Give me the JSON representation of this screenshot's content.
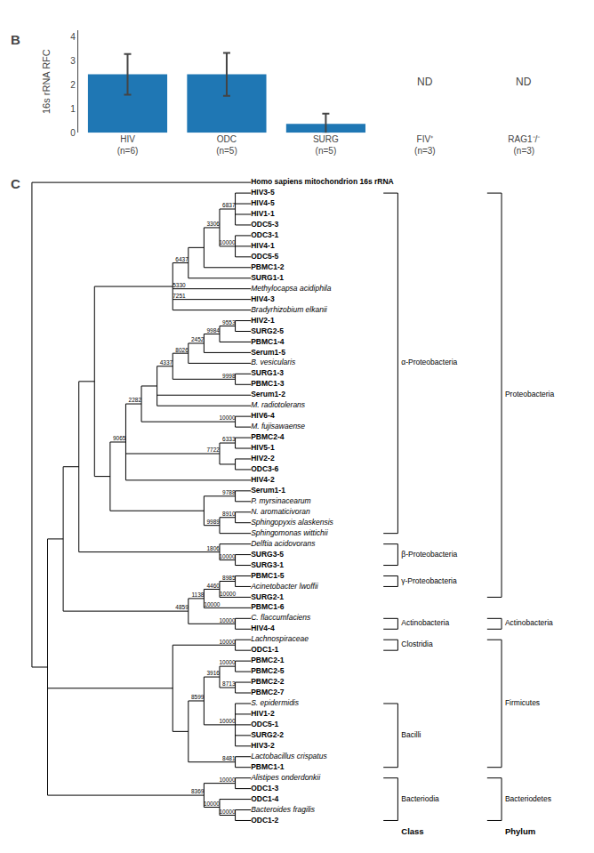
{
  "chart_data": [
    {
      "type": "bar",
      "title": "B",
      "categories": [
        "HIV\n(n=6)",
        "ODC\n(n=5)",
        "SURG\n(n=5)",
        "FIV⁺\n(n=3)",
        "RAG1⁻/⁻\n(n=3)"
      ],
      "values": [
        2.45,
        2.45,
        0.38,
        null,
        null
      ],
      "errors": [
        0.85,
        0.9,
        0.42,
        null,
        null
      ],
      "annotations": [
        {
          "x": 3,
          "text": "ND"
        },
        {
          "x": 4,
          "text": "ND"
        }
      ],
      "ylabel": "16s rRNA RFC",
      "ylim": [
        0,
        4.3
      ],
      "yticks": [
        0,
        1,
        2,
        3,
        4
      ],
      "grid": false
    },
    {
      "type": "tree",
      "title": "C",
      "color": "#000000",
      "tree": {
        "children": [
          "Homo sapiens mitochondrion 16s rRNA",
          {
            "children": [
              {
                "children": [
                  {
                    "children": [
                      {
                        "children": [
                          {
                            "children": [
                              {
                                "support": 6437,
                                "children": [
                                  {
                                    "children": [
                                      {
                                        "support": 3306,
                                        "children": [
                                          {
                                            "support": 6837,
                                            "children": [
                                              "HIV3-5",
                                              "HIV4-5",
                                              "HIV1-1",
                                              "ODC5-3"
                                            ]
                                          },
                                          {
                                            "support": 10000,
                                            "children": [
                                              "ODC3-1",
                                              "HIV4-1",
                                              "ODC5-5"
                                            ]
                                          }
                                        ]
                                      },
                                      "PBMC1-2"
                                    ]
                                  },
                                  "SURG1-1"
                                ]
                              },
                              {
                                "name": "Methylocapsa acidiphila",
                                "support": 5330
                              },
                              {
                                "name": "HIV4-3",
                                "support": 7251
                              },
                              "Bradyrhizobium elkanii"
                            ]
                          },
                          {
                            "children": [
                              {
                                "support": 9065,
                                "children": [
                                  {
                                    "support": 2282,
                                    "children": [
                                      {
                                        "children": [
                                          {
                                            "support": 4337,
                                            "children": [
                                              {
                                                "support": 8026,
                                                "children": [
                                                  {
                                                    "support": 2452,
                                                    "children": [
                                                      {
                                                        "support": 9984,
                                                        "children": [
                                                          {
                                                            "support": 9553,
                                                            "children": [
                                                              "HIV2-1",
                                                              "SURG2-5"
                                                            ]
                                                          },
                                                          "PBMC1-4"
                                                        ]
                                                      },
                                                      "Serum1-5"
                                                    ]
                                                  },
                                                  "B. vesicularis"
                                                ]
                                              },
                                              {
                                                "support": 9998,
                                                "children": [
                                                  "SURG1-3",
                                                  "PBMC1-3"
                                                ]
                                              }
                                            ]
                                          },
                                          "Serum1-2",
                                          "M. radiotolerans"
                                        ]
                                      },
                                      {
                                        "support": 10000,
                                        "children": [
                                          "HIV6-4",
                                          "M. fujisawaense"
                                        ]
                                      }
                                    ]
                                  },
                                  {
                                    "support": 7722,
                                    "children": [
                                      {
                                        "support": 6333,
                                        "children": [
                                          "PBMC2-4",
                                          "HIV5-1"
                                        ]
                                      },
                                      {
                                        "children": [
                                          "HIV2-2",
                                          "ODC3-6"
                                        ]
                                      }
                                    ]
                                  },
                                  "HIV4-2"
                                ]
                              },
                              {
                                "children": [
                                  {
                                    "support": 9788,
                                    "children": [
                                      "Serum1-1",
                                      "P. myrsinacearum"
                                    ]
                                  },
                                  {
                                    "support": 9989,
                                    "children": [
                                      {
                                        "support": 8910,
                                        "children": [
                                          "N. aromaticivoran",
                                          "Sphingopyxis alaskensis"
                                        ]
                                      },
                                      "Sphingomonas wittichii"
                                    ]
                                  }
                                ]
                              }
                            ]
                          }
                        ]
                      },
                      {
                        "support": 1806,
                        "children": [
                          "Delftia acidovorans",
                          {
                            "support": 10000,
                            "children": [
                              "SURG3-5",
                              "SURG3-1"
                            ]
                          }
                        ]
                      }
                    ]
                  },
                  {
                    "support": 4859,
                    "children": [
                      {
                        "support": 1138,
                        "children": [
                          {
                            "support": 4460,
                            "children": [
                              {
                                "support": 8985,
                                "children": [
                                  "PBMC1-5",
                                  "Acinetobacter lwoffii"
                                ]
                              },
                              {
                                "name": "SURG2-1",
                                "support": 10000
                              }
                            ]
                          },
                          {
                            "name": "PBMC1-6",
                            "support": 10000
                          }
                        ]
                      },
                      {
                        "support": 10000,
                        "children": [
                          "C. flaccumfaciens",
                          "HIV4-4"
                        ]
                      }
                    ]
                  }
                ]
              },
              {
                "children": [
                  {
                    "support": 10000,
                    "children": [
                      "Lachnospiraceae",
                      "ODC1-1"
                    ]
                  },
                  {
                    "children": [
                      {
                        "support": 8599,
                        "children": [
                          {
                            "support": 3916,
                            "children": [
                              {
                                "support": 10000,
                                "children": [
                                  "PBMC2-1",
                                  "PBMC2-5"
                                ]
                              },
                              {
                                "support": 8713,
                                "children": [
                                  "PBMC2-2",
                                  "PBMC2-7"
                                ]
                              }
                            ]
                          },
                          {
                            "support": 10000,
                            "children": [
                              "S. epidermidis",
                              "HIV1-2",
                              "ODC5-1",
                              "SURG2-2",
                              "HIV3-2"
                            ]
                          }
                        ]
                      },
                      {
                        "support": 8481,
                        "children": [
                          "Lactobacillus crispatus",
                          "PBMC1-1"
                        ]
                      }
                    ]
                  }
                ]
              },
              {
                "support": 8369,
                "children": [
                  {
                    "support": 10000,
                    "children": [
                      "Alistipes onderdonkii",
                      "ODC1-3"
                    ]
                  },
                  {
                    "support": 10000,
                    "children": [
                      "ODC1-4",
                      {
                        "support": 10000,
                        "children": [
                          "Bacteroides fragilis",
                          "ODC1-2"
                        ]
                      }
                    ]
                  }
                ]
              }
            ]
          }
        ]
      },
      "bold_taxa": [
        "Homo sapiens mitochondrion 16s rRNA",
        "HIV3-5",
        "HIV4-5",
        "HIV1-1",
        "ODC5-3",
        "ODC3-1",
        "HIV4-1",
        "ODC5-5",
        "PBMC1-2",
        "SURG1-1",
        "HIV4-3",
        "HIV2-1",
        "SURG2-5",
        "PBMC1-4",
        "Serum1-5",
        "SURG1-3",
        "PBMC1-3",
        "Serum1-2",
        "HIV6-4",
        "PBMC2-4",
        "HIV5-1",
        "HIV2-2",
        "ODC3-6",
        "HIV4-2",
        "Serum1-1",
        "SURG3-5",
        "SURG3-1",
        "PBMC1-5",
        "SURG2-1",
        "PBMC1-6",
        "HIV4-4",
        "ODC1-1",
        "PBMC2-1",
        "PBMC2-5",
        "PBMC2-2",
        "PBMC2-7",
        "HIV1-2",
        "ODC5-1",
        "SURG2-2",
        "HIV3-2",
        "PBMC1-1",
        "ODC1-3",
        "ODC1-4",
        "ODC1-2"
      ],
      "italic_taxa": [
        "Methylocapsa acidiphila",
        "Bradyrhizobium elkanii",
        "B. vesicularis",
        "M. radiotolerans",
        "M. fujisawaense",
        "P. myrsinacearum",
        "N. aromaticivoran",
        "Sphingopyxis alaskensis",
        "Sphingomonas wittichii",
        "Delftia acidovorans",
        "Acinetobacter lwoffii",
        "C. flaccumfaciens",
        "Lachnospiraceae",
        "S. epidermidis",
        "Lactobacillus crispatus",
        "Alistipes onderdonkii",
        "Bacteroides fragilis"
      ],
      "bracket_columns": [
        {
          "header": "Class",
          "brackets": [
            {
              "from": "HIV3-5",
              "to": "Sphingomonas wittichii",
              "label": "α-Proteobacteria"
            },
            {
              "from": "Delftia acidovorans",
              "to": "SURG3-1",
              "label": "β-Proteobacteria"
            },
            {
              "from": "PBMC1-5",
              "to": "Acinetobacter lwoffii",
              "label": "γ-Proteobacteria"
            },
            {
              "from": "C. flaccumfaciens",
              "to": "HIV4-4",
              "label": "Actinobacteria"
            },
            {
              "from": "Lachnospiraceae",
              "to": "ODC1-1",
              "label": "Clostridia"
            },
            {
              "from": "S. epidermidis",
              "to": "PBMC1-1",
              "label": "Bacilli"
            },
            {
              "from": "Alistipes onderdonkii",
              "to": "ODC1-2",
              "label": "Bacteriodia"
            }
          ]
        },
        {
          "header": "Phylum",
          "brackets": [
            {
              "from": "HIV3-5",
              "to": "SURG2-1",
              "label": "Proteobacteria"
            },
            {
              "from": "C. flaccumfaciens",
              "to": "HIV4-4",
              "label": "Actinobacteria"
            },
            {
              "from": "Lachnospiraceae",
              "to": "PBMC1-1",
              "label": "Firmicutes"
            },
            {
              "from": "Alistipes onderdonkii",
              "to": "ODC1-2",
              "label": "Bacteriodetes"
            }
          ]
        }
      ]
    }
  ]
}
